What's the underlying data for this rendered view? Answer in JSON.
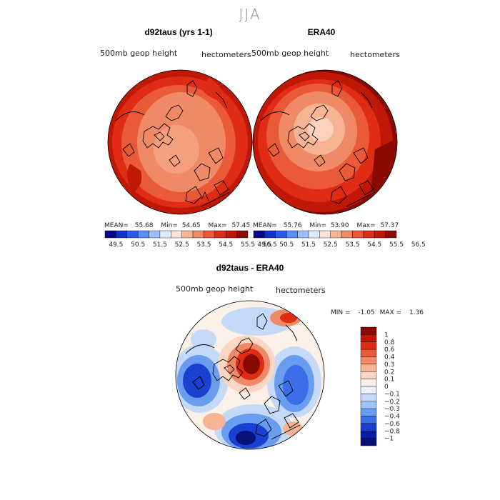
{
  "figure_title": "JJA",
  "panels": [
    {
      "title": "d92taus (yrs 1-1)",
      "variable": "500mb geop height",
      "units": "hectometers",
      "stats": {
        "mean_label": "MEAN=",
        "mean": "55.68",
        "min_label": "Min=",
        "min": "54.65",
        "max_label": "Max=",
        "max": "57.45"
      }
    },
    {
      "title": "ERA40",
      "variable": "500mb geop height",
      "units": "hectometers",
      "stats": {
        "mean_label": "MEAN=",
        "mean": "55.76",
        "min_label": "Min=",
        "min": "53.90",
        "max_label": "Max=",
        "max": "57.37"
      }
    },
    {
      "title": "d92taus - ERA40",
      "variable": "500mb geop height",
      "units": "hectometers",
      "stats": {
        "min_label": "MIN =",
        "min": "-1.05",
        "max_label": "MAX =",
        "max": "1.36"
      }
    }
  ],
  "colorbar_top": {
    "labels": [
      "49.5",
      "50.5",
      "51.5",
      "52.5",
      "53.5",
      "54.5",
      "55.5",
      "56.5"
    ],
    "colors": [
      "#0d0a8a",
      "#1432c8",
      "#2a5ae6",
      "#5a8ef0",
      "#9ec2f6",
      "#dde9fb",
      "#fbe2d2",
      "#f6b494",
      "#f08a66",
      "#ea5a38",
      "#e02c14",
      "#c01806",
      "#8a0a02"
    ]
  },
  "colorbar_diff": {
    "labels": [
      "1",
      "0.8",
      "0.6",
      "0.4",
      "0.3",
      "0.2",
      "0.1",
      "0",
      "-0.1",
      "-0.2",
      "-0.3",
      "-0.4",
      "-0.6",
      "-0.8",
      "-1"
    ],
    "colors": [
      "#8a0a02",
      "#c01806",
      "#e02c14",
      "#ea5a38",
      "#f08a66",
      "#f6b494",
      "#fbd6c4",
      "#fdf0e8",
      "#e8f0fb",
      "#c4daf8",
      "#9ec2f6",
      "#6a9cf0",
      "#3a6ee8",
      "#1a40d0",
      "#0c1ea8",
      "#08107a"
    ]
  }
}
